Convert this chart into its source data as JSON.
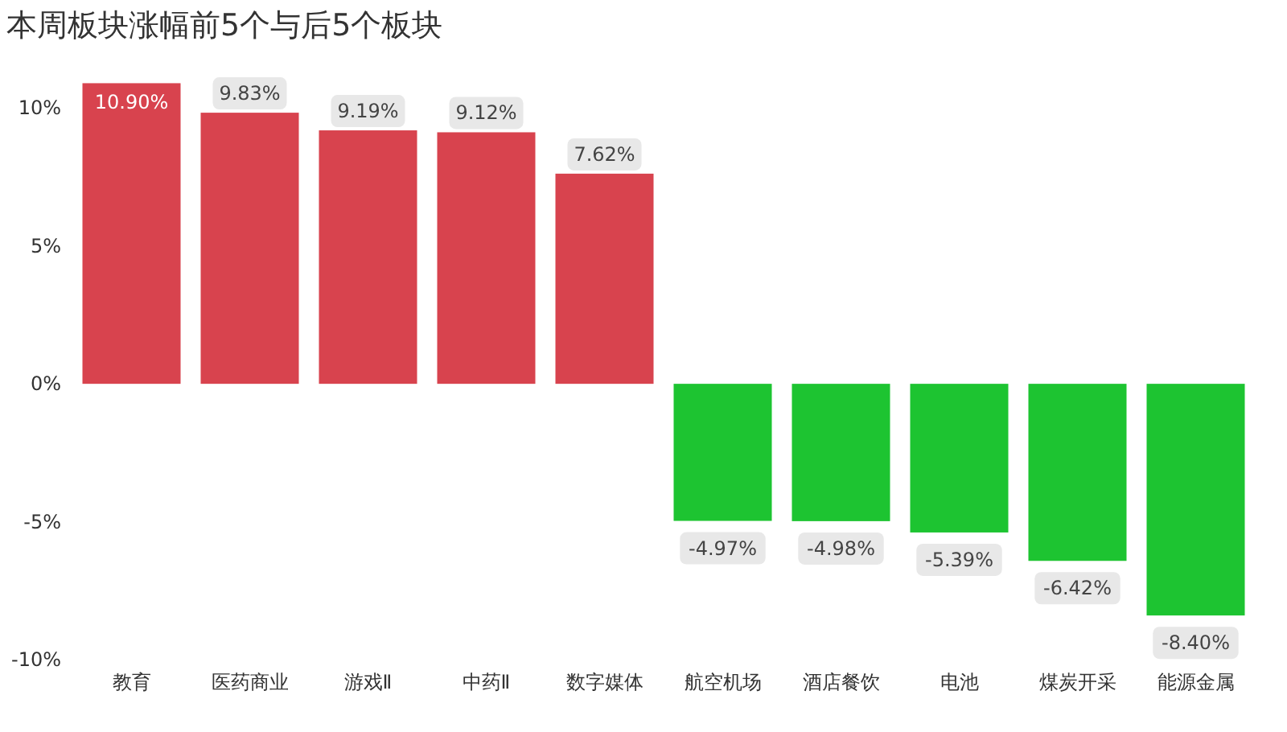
{
  "chart_data": {
    "type": "bar",
    "title": "本周板块涨幅前5个与后5个板块",
    "categories": [
      "教育",
      "医药商业",
      "游戏Ⅱ",
      "中药Ⅱ",
      "数字媒体",
      "航空机场",
      "酒店餐饮",
      "电池",
      "煤炭开采",
      "能源金属"
    ],
    "values": [
      10.9,
      9.83,
      9.19,
      9.12,
      7.62,
      -4.97,
      -4.98,
      -5.39,
      -6.42,
      -8.4
    ],
    "colors": [
      "#d8434e",
      "#d8434e",
      "#d8434e",
      "#d8434e",
      "#d8434e",
      "#1dc431",
      "#1dc431",
      "#1dc431",
      "#1dc431",
      "#1dc431"
    ],
    "value_labels": [
      "10.90%",
      "9.83%",
      "9.19%",
      "9.12%",
      "7.62%",
      "-4.97%",
      "-4.98%",
      "-5.39%",
      "-6.42%",
      "-8.40%"
    ],
    "ylim": [
      -10,
      11
    ],
    "yticks": [
      {
        "value": -10,
        "label": "-10%"
      },
      {
        "value": -5,
        "label": "-5%"
      },
      {
        "value": 0,
        "label": "0%"
      },
      {
        "value": 5,
        "label": "5%"
      },
      {
        "value": 10,
        "label": "10%"
      }
    ],
    "grid": false
  }
}
